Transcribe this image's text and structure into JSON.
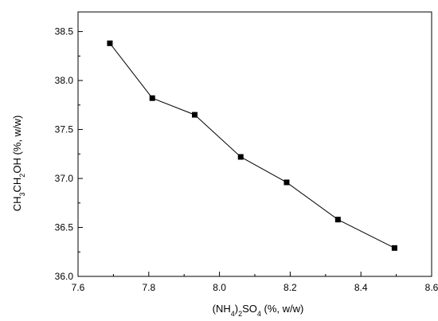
{
  "chart_data": {
    "type": "line",
    "title": "",
    "xlabel": {
      "parts": [
        {
          "text": "(NH",
          "sub": false
        },
        {
          "text": "4",
          "sub": true
        },
        {
          "text": ")",
          "sub": false
        },
        {
          "text": "2",
          "sub": true
        },
        {
          "text": "SO",
          "sub": false
        },
        {
          "text": "4",
          "sub": true
        },
        {
          "text": " (%, w/w)",
          "sub": false
        }
      ]
    },
    "ylabel": {
      "parts": [
        {
          "text": "CH",
          "sub": false
        },
        {
          "text": "3",
          "sub": true
        },
        {
          "text": "CH",
          "sub": false
        },
        {
          "text": "2",
          "sub": true
        },
        {
          "text": "OH (%, w/w)",
          "sub": false
        }
      ]
    },
    "xlim": [
      7.6,
      8.6
    ],
    "ylim": [
      36.0,
      38.7
    ],
    "xticks": [
      "7.6",
      "7.8",
      "8.0",
      "8.2",
      "8.4",
      "8.6"
    ],
    "yticks": [
      "36.0",
      "36.5",
      "37.0",
      "37.5",
      "38.0",
      "38.5"
    ],
    "grid": false,
    "marker": "square",
    "series": [
      {
        "x": [
          7.69,
          7.81,
          7.93,
          8.06,
          8.19,
          8.335,
          8.495
        ],
        "y": [
          38.38,
          37.82,
          37.65,
          37.22,
          36.96,
          36.58,
          36.29
        ]
      }
    ],
    "colors": {
      "line": "#000000",
      "marker": "#000000",
      "axis": "#000000"
    }
  }
}
